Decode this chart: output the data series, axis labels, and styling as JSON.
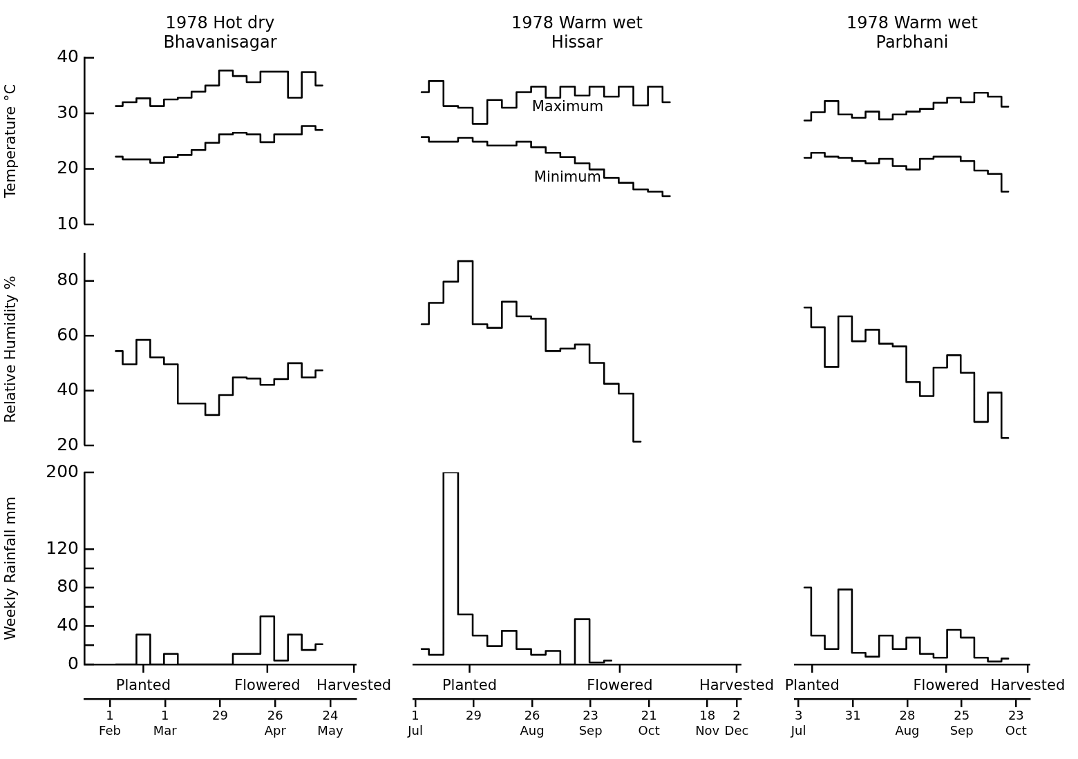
{
  "chart_data": [
    {
      "type": "step",
      "title": "1978 Hot dry",
      "subtitle": "Bhavanisagar",
      "ylabel": "Temperature °C",
      "tick_labels": "y",
      "x": [
        "--02-04",
        "--02-11",
        "--02-18",
        "--02-25",
        "--03-04",
        "--03-11",
        "--03-18",
        "--03-25",
        "--04-01",
        "--04-08",
        "--04-15",
        "--04-22",
        "--04-29",
        "--05-06",
        "--05-13",
        "--05-20"
      ],
      "series": [
        {
          "color": "#000000",
          "values": [
            31.3,
            32.0,
            32.7,
            31.3,
            32.5,
            32.8,
            33.9,
            35.0,
            37.7,
            36.7,
            35.6,
            37.5,
            37.5,
            32.8,
            37.4,
            35.0
          ]
        },
        {
          "color": "#000000",
          "values": [
            22.2,
            21.7,
            21.7,
            21.1,
            22.1,
            22.5,
            23.4,
            24.7,
            26.2,
            26.5,
            26.2,
            24.8,
            26.2,
            26.2,
            27.7,
            27.0
          ]
        }
      ],
      "ylim": [
        10,
        40
      ],
      "yticks": [
        10,
        20,
        30,
        40
      ],
      "xticks": [
        {
          "value": "--02-01",
          "label": "1 Feb"
        },
        {
          "value": "--03-01",
          "label": "1 Mar"
        },
        {
          "value": "--03-29",
          "label": "29"
        },
        {
          "value": "--04-26",
          "label": "26 Apr"
        },
        {
          "value": "--05-24",
          "label": "24 May"
        }
      ]
    },
    {
      "type": "step",
      "title": "1978 Warm wet",
      "subtitle": "Hissar",
      "tick_labels": false,
      "x": [
        "--07-04",
        "--07-11",
        "--07-18",
        "--07-25",
        "--08-01",
        "--08-08",
        "--08-15",
        "--08-22",
        "--08-29",
        "--09-05",
        "--09-12",
        "--09-19",
        "--09-26",
        "--10-03",
        "--10-10",
        "--10-17",
        "--10-24",
        "--10-31"
      ],
      "series": [
        {
          "name": "Maximum",
          "color": "#000000",
          "values": [
            33.8,
            35.8,
            31.3,
            31.0,
            28.1,
            32.4,
            31.0,
            33.8,
            34.8,
            32.8,
            34.8,
            33.2,
            34.8,
            33.0,
            34.8,
            31.4,
            34.8,
            32.0
          ]
        },
        {
          "name": "Minimum",
          "color": "#000000",
          "values": [
            25.7,
            24.9,
            24.9,
            25.6,
            24.9,
            24.2,
            24.2,
            24.9,
            23.9,
            22.9,
            22.1,
            21.0,
            19.9,
            18.4,
            17.5,
            16.3,
            15.9,
            15.1
          ]
        }
      ],
      "yticks": [
        10,
        20,
        30,
        40
      ],
      "xticks": [
        {
          "value": "--07-01",
          "label": "1 Jul"
        },
        {
          "value": "--07-29",
          "label": "29"
        },
        {
          "value": "--08-26",
          "label": "26 Aug"
        },
        {
          "value": "--09-23",
          "label": "23 Sep"
        },
        {
          "value": "--10-21",
          "label": "21 Oct"
        },
        {
          "value": "--11-18",
          "label": "18 Nov"
        },
        {
          "value": "--12-02",
          "label": "2 Dec"
        }
      ]
    },
    {
      "type": "step",
      "title": "1978 Warm wet",
      "subtitle": "Parbhani",
      "tick_labels": false,
      "x": [
        "--07-06",
        "--07-13",
        "--07-20",
        "--07-27",
        "--08-03",
        "--08-10",
        "--08-17",
        "--08-24",
        "--08-31",
        "--09-07",
        "--09-14",
        "--09-21",
        "--09-28",
        "--10-05",
        "--10-12",
        "--10-19"
      ],
      "series": [
        {
          "color": "#000000",
          "values": [
            28.7,
            30.2,
            32.2,
            29.8,
            29.2,
            30.3,
            28.9,
            29.8,
            30.3,
            30.8,
            31.9,
            32.8,
            32.0,
            33.7,
            33.0,
            31.2
          ]
        },
        {
          "color": "#000000",
          "values": [
            22.0,
            22.9,
            22.2,
            22.0,
            21.4,
            21.0,
            21.8,
            20.5,
            19.9,
            21.8,
            22.2,
            22.2,
            21.4,
            19.7,
            19.1,
            15.9
          ]
        }
      ],
      "yticks": [
        10,
        20,
        30,
        40
      ],
      "xticks": [
        {
          "value": "--07-03",
          "label": "3 Jul"
        },
        {
          "value": "--07-31",
          "label": "31"
        },
        {
          "value": "--08-28",
          "label": "28 Aug"
        },
        {
          "value": "--09-25",
          "label": "25 Sep"
        },
        {
          "value": "--10-23",
          "label": "23 Oct"
        }
      ]
    },
    {
      "type": "step",
      "ylabel": "Relative Humidity %",
      "tick_labels": "y",
      "x": [
        "--02-04",
        "--02-11",
        "--02-18",
        "--02-25",
        "--03-04",
        "--03-11",
        "--03-18",
        "--03-25",
        "--04-01",
        "--04-08",
        "--04-15",
        "--04-22",
        "--04-29",
        "--05-06",
        "--05-13",
        "--05-20"
      ],
      "series": [
        {
          "color": "#000000",
          "values": [
            54.4,
            49.6,
            58.5,
            52.1,
            49.6,
            35.3,
            35.3,
            31.1,
            38.4,
            44.8,
            44.4,
            42.1,
            44.2,
            50.0,
            44.8,
            47.4
          ]
        }
      ],
      "ylim": [
        20,
        90
      ],
      "yticks": [
        20,
        40,
        60,
        80
      ],
      "xticks": [
        {
          "value": "--02-01",
          "label": "1 Feb"
        },
        {
          "value": "--03-01",
          "label": "1 Mar"
        },
        {
          "value": "--03-29",
          "label": "29"
        },
        {
          "value": "--04-26",
          "label": "26 Apr"
        },
        {
          "value": "--05-24",
          "label": "24 May"
        }
      ]
    },
    {
      "type": "step",
      "tick_labels": false,
      "x": [
        "--07-04",
        "--07-11",
        "--07-18",
        "--07-25",
        "--08-01",
        "--08-08",
        "--08-15",
        "--08-22",
        "--08-29",
        "--09-05",
        "--09-12",
        "--09-19",
        "--09-26",
        "--10-03",
        "--10-10",
        "--10-17"
      ],
      "series": [
        {
          "color": "#000000",
          "values": [
            64.2,
            72.0,
            79.7,
            87.2,
            64.2,
            62.9,
            72.4,
            67.1,
            66.2,
            54.4,
            55.3,
            56.8,
            50.1,
            42.5,
            38.9,
            21.4
          ]
        }
      ],
      "yticks": [
        20,
        40,
        60,
        80
      ],
      "xticks": [
        {
          "value": "--07-01",
          "label": "1 Jul"
        },
        {
          "value": "--07-29",
          "label": "29"
        },
        {
          "value": "--08-26",
          "label": "26 Aug"
        },
        {
          "value": "--09-23",
          "label": "23 Sep"
        },
        {
          "value": "--10-21",
          "label": "21 Oct"
        },
        {
          "value": "--11-18",
          "label": "18 Nov"
        },
        {
          "value": "--12-02",
          "label": "2 Dec"
        }
      ]
    },
    {
      "type": "step",
      "tick_labels": false,
      "x": [
        "--07-06",
        "--07-13",
        "--07-20",
        "--07-27",
        "--08-03",
        "--08-10",
        "--08-17",
        "--08-24",
        "--08-31",
        "--09-07",
        "--09-14",
        "--09-21",
        "--09-28",
        "--10-05",
        "--10-12",
        "--10-19"
      ],
      "series": [
        {
          "color": "#000000",
          "values": [
            70.3,
            63.1,
            48.6,
            67.1,
            58.0,
            62.2,
            57.1,
            56.1,
            43.1,
            38.0,
            48.4,
            52.9,
            46.5,
            28.6,
            39.3,
            22.7
          ]
        }
      ],
      "yticks": [
        20,
        40,
        60,
        80
      ],
      "xticks": [
        {
          "value": "--07-03",
          "label": "3 Jul"
        },
        {
          "value": "--07-31",
          "label": "31"
        },
        {
          "value": "--08-28",
          "label": "28 Aug"
        },
        {
          "value": "--09-25",
          "label": "25 Sep"
        },
        {
          "value": "--10-23",
          "label": "23 Oct"
        }
      ]
    },
    {
      "type": "step",
      "ylabel": "Weekly Rainfall mm",
      "x": [
        "--02-04",
        "--02-11",
        "--02-18",
        "--02-25",
        "--03-04",
        "--03-11",
        "--03-18",
        "--03-25",
        "--04-01",
        "--04-08",
        "--04-15",
        "--04-22",
        "--04-29",
        "--05-06",
        "--05-13",
        "--05-20"
      ],
      "series": [
        {
          "color": "#000000",
          "values": [
            0,
            0,
            31,
            0,
            11,
            0,
            0,
            0,
            0,
            11,
            11,
            50,
            4,
            31,
            15,
            21
          ]
        }
      ],
      "xlim": [
        "--01-19",
        "--06-06"
      ],
      "ylim": [
        0,
        200
      ],
      "yticks": [
        0,
        {
          "value": 20,
          "label": null
        },
        40,
        {
          "value": 60,
          "label": null
        },
        80,
        {
          "value": 100,
          "label": null
        },
        120,
        200
      ],
      "xticks": [
        {
          "value": "--02-01",
          "label": "1 Feb"
        },
        {
          "value": "--03-01",
          "label": "1 Mar"
        },
        {
          "value": "--03-29",
          "label": "29"
        },
        {
          "value": "--04-26",
          "label": "26 Apr"
        },
        {
          "value": "--05-24",
          "label": "24 May"
        }
      ],
      "ref_lines": [
        {
          "axis": "x",
          "value": "--02-18",
          "label": "Planted"
        },
        {
          "axis": "x",
          "value": "--04-22",
          "label": "Flowered"
        },
        {
          "axis": "x",
          "value": "--06-05",
          "label": "Harvested"
        }
      ]
    },
    {
      "type": "step",
      "tick_labels": "x",
      "x": [
        "--07-04",
        "--07-11",
        "--07-18",
        "--07-25",
        "--08-01",
        "--08-08",
        "--08-15",
        "--08-22",
        "--08-29",
        "--09-05",
        "--09-12",
        "--09-19",
        "--09-26",
        "--10-03"
      ],
      "series": [
        {
          "color": "#000000",
          "values": [
            16,
            10,
            200,
            52,
            30,
            19,
            35,
            16,
            10,
            14,
            0,
            47,
            2,
            4
          ]
        }
      ],
      "xlim": [
        "--06-30",
        "--12-04"
      ],
      "yticks": [
        0,
        40,
        80,
        120,
        200
      ],
      "xticks": [
        {
          "value": "--07-01",
          "label": "1 Jul"
        },
        {
          "value": "--07-29",
          "label": "29"
        },
        {
          "value": "--08-26",
          "label": "26 Aug"
        },
        {
          "value": "--09-23",
          "label": "23 Sep"
        },
        {
          "value": "--10-21",
          "label": "21 Oct"
        },
        {
          "value": "--11-18",
          "label": "18 Nov"
        },
        {
          "value": "--12-02",
          "label": "2 Dec"
        }
      ],
      "ref_lines": [
        {
          "axis": "x",
          "value": "--07-27",
          "label": "Planted"
        },
        {
          "axis": "x",
          "value": "--10-07",
          "label": "Flowered"
        },
        {
          "axis": "x",
          "value": "--12-02",
          "label": "Harvested"
        }
      ]
    },
    {
      "type": "step",
      "tick_labels": "x",
      "x": [
        "--07-06",
        "--07-13",
        "--07-20",
        "--07-27",
        "--08-03",
        "--08-10",
        "--08-17",
        "--08-24",
        "--08-31",
        "--09-07",
        "--09-14",
        "--09-21",
        "--09-28",
        "--10-05",
        "--10-12",
        "--10-19"
      ],
      "series": [
        {
          "color": "#000000",
          "values": [
            80,
            30,
            16,
            78,
            12,
            8,
            30,
            16,
            28,
            11,
            7,
            36,
            28,
            7,
            3,
            6
          ]
        }
      ],
      "xlim": [
        "--07-01",
        "--10-30"
      ],
      "yticks": [
        0,
        40,
        80,
        120,
        200
      ],
      "xticks": [
        {
          "value": "--07-03",
          "label": "3 Jul"
        },
        {
          "value": "--07-31",
          "label": "31"
        },
        {
          "value": "--08-28",
          "label": "28 Aug"
        },
        {
          "value": "--09-25",
          "label": "25 Sep"
        },
        {
          "value": "--10-23",
          "label": "23 Oct"
        }
      ],
      "ref_lines": [
        {
          "axis": "x",
          "value": "--07-10",
          "label": "Planted"
        },
        {
          "axis": "x",
          "value": "--09-17",
          "label": "Flowered"
        },
        {
          "axis": "x",
          "value": "--10-29",
          "label": "Harvested"
        }
      ]
    }
  ]
}
